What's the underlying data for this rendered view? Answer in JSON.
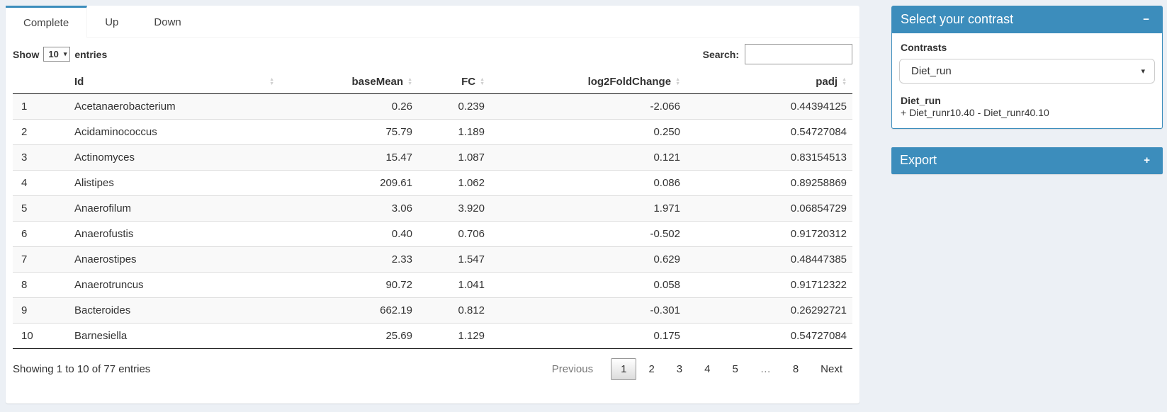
{
  "colors": {
    "primary": "#3c8dbc",
    "page_bg": "#ecf0f5",
    "stripe": "#f9f9f9"
  },
  "tabs": [
    {
      "label": "Complete",
      "active": true
    },
    {
      "label": "Up",
      "active": false
    },
    {
      "label": "Down",
      "active": false
    }
  ],
  "table_controls": {
    "show_label": "Show",
    "page_length": "10",
    "entries_label": "entries",
    "search_label": "Search:",
    "search_value": ""
  },
  "table": {
    "columns": [
      {
        "key": "rownum",
        "label": "",
        "align": "left",
        "sortable": false
      },
      {
        "key": "id",
        "label": "Id",
        "align": "left",
        "sortable": true
      },
      {
        "key": "basemean",
        "label": "baseMean",
        "align": "right",
        "sortable": true
      },
      {
        "key": "fc",
        "label": "FC",
        "align": "right",
        "sortable": true
      },
      {
        "key": "log2foldchange",
        "label": "log2FoldChange",
        "align": "right",
        "sortable": true
      },
      {
        "key": "padj",
        "label": "padj",
        "align": "right",
        "sortable": true
      }
    ],
    "rows": [
      [
        "1",
        "Acetanaerobacterium",
        "0.26",
        "0.239",
        "-2.066",
        "0.44394125"
      ],
      [
        "2",
        "Acidaminococcus",
        "75.79",
        "1.189",
        "0.250",
        "0.54727084"
      ],
      [
        "3",
        "Actinomyces",
        "15.47",
        "1.087",
        "0.121",
        "0.83154513"
      ],
      [
        "4",
        "Alistipes",
        "209.61",
        "1.062",
        "0.086",
        "0.89258869"
      ],
      [
        "5",
        "Anaerofilum",
        "3.06",
        "3.920",
        "1.971",
        "0.06854729"
      ],
      [
        "6",
        "Anaerofustis",
        "0.40",
        "0.706",
        "-0.502",
        "0.91720312"
      ],
      [
        "7",
        "Anaerostipes",
        "2.33",
        "1.547",
        "0.629",
        "0.48447385"
      ],
      [
        "8",
        "Anaerotruncus",
        "90.72",
        "1.041",
        "0.058",
        "0.91712322"
      ],
      [
        "9",
        "Bacteroides",
        "662.19",
        "0.812",
        "-0.301",
        "0.26292721"
      ],
      [
        "10",
        "Barnesiella",
        "25.69",
        "1.129",
        "0.175",
        "0.54727084"
      ]
    ],
    "info": "Showing 1 to 10 of 77 entries",
    "pagination": [
      {
        "label": "Previous",
        "state": "disabled prev"
      },
      {
        "label": "1",
        "state": "current"
      },
      {
        "label": "2",
        "state": "normal"
      },
      {
        "label": "3",
        "state": "normal"
      },
      {
        "label": "4",
        "state": "normal"
      },
      {
        "label": "5",
        "state": "normal"
      },
      {
        "label": "…",
        "state": "ellipsis"
      },
      {
        "label": "8",
        "state": "normal"
      },
      {
        "label": "Next",
        "state": "normal"
      }
    ]
  },
  "contrast_panel": {
    "title": "Select your contrast",
    "contrasts_label": "Contrasts",
    "selected_contrast": "Diet_run",
    "contrast_name": "Diet_run",
    "contrast_formula": "+ Diet_runr10.40 - Diet_runr40.10"
  },
  "export_panel": {
    "title": "Export"
  },
  "icons": {
    "minus": "−",
    "plus": "+",
    "caret_down": "▾",
    "sort_up": "▲",
    "sort_down": "▼"
  }
}
